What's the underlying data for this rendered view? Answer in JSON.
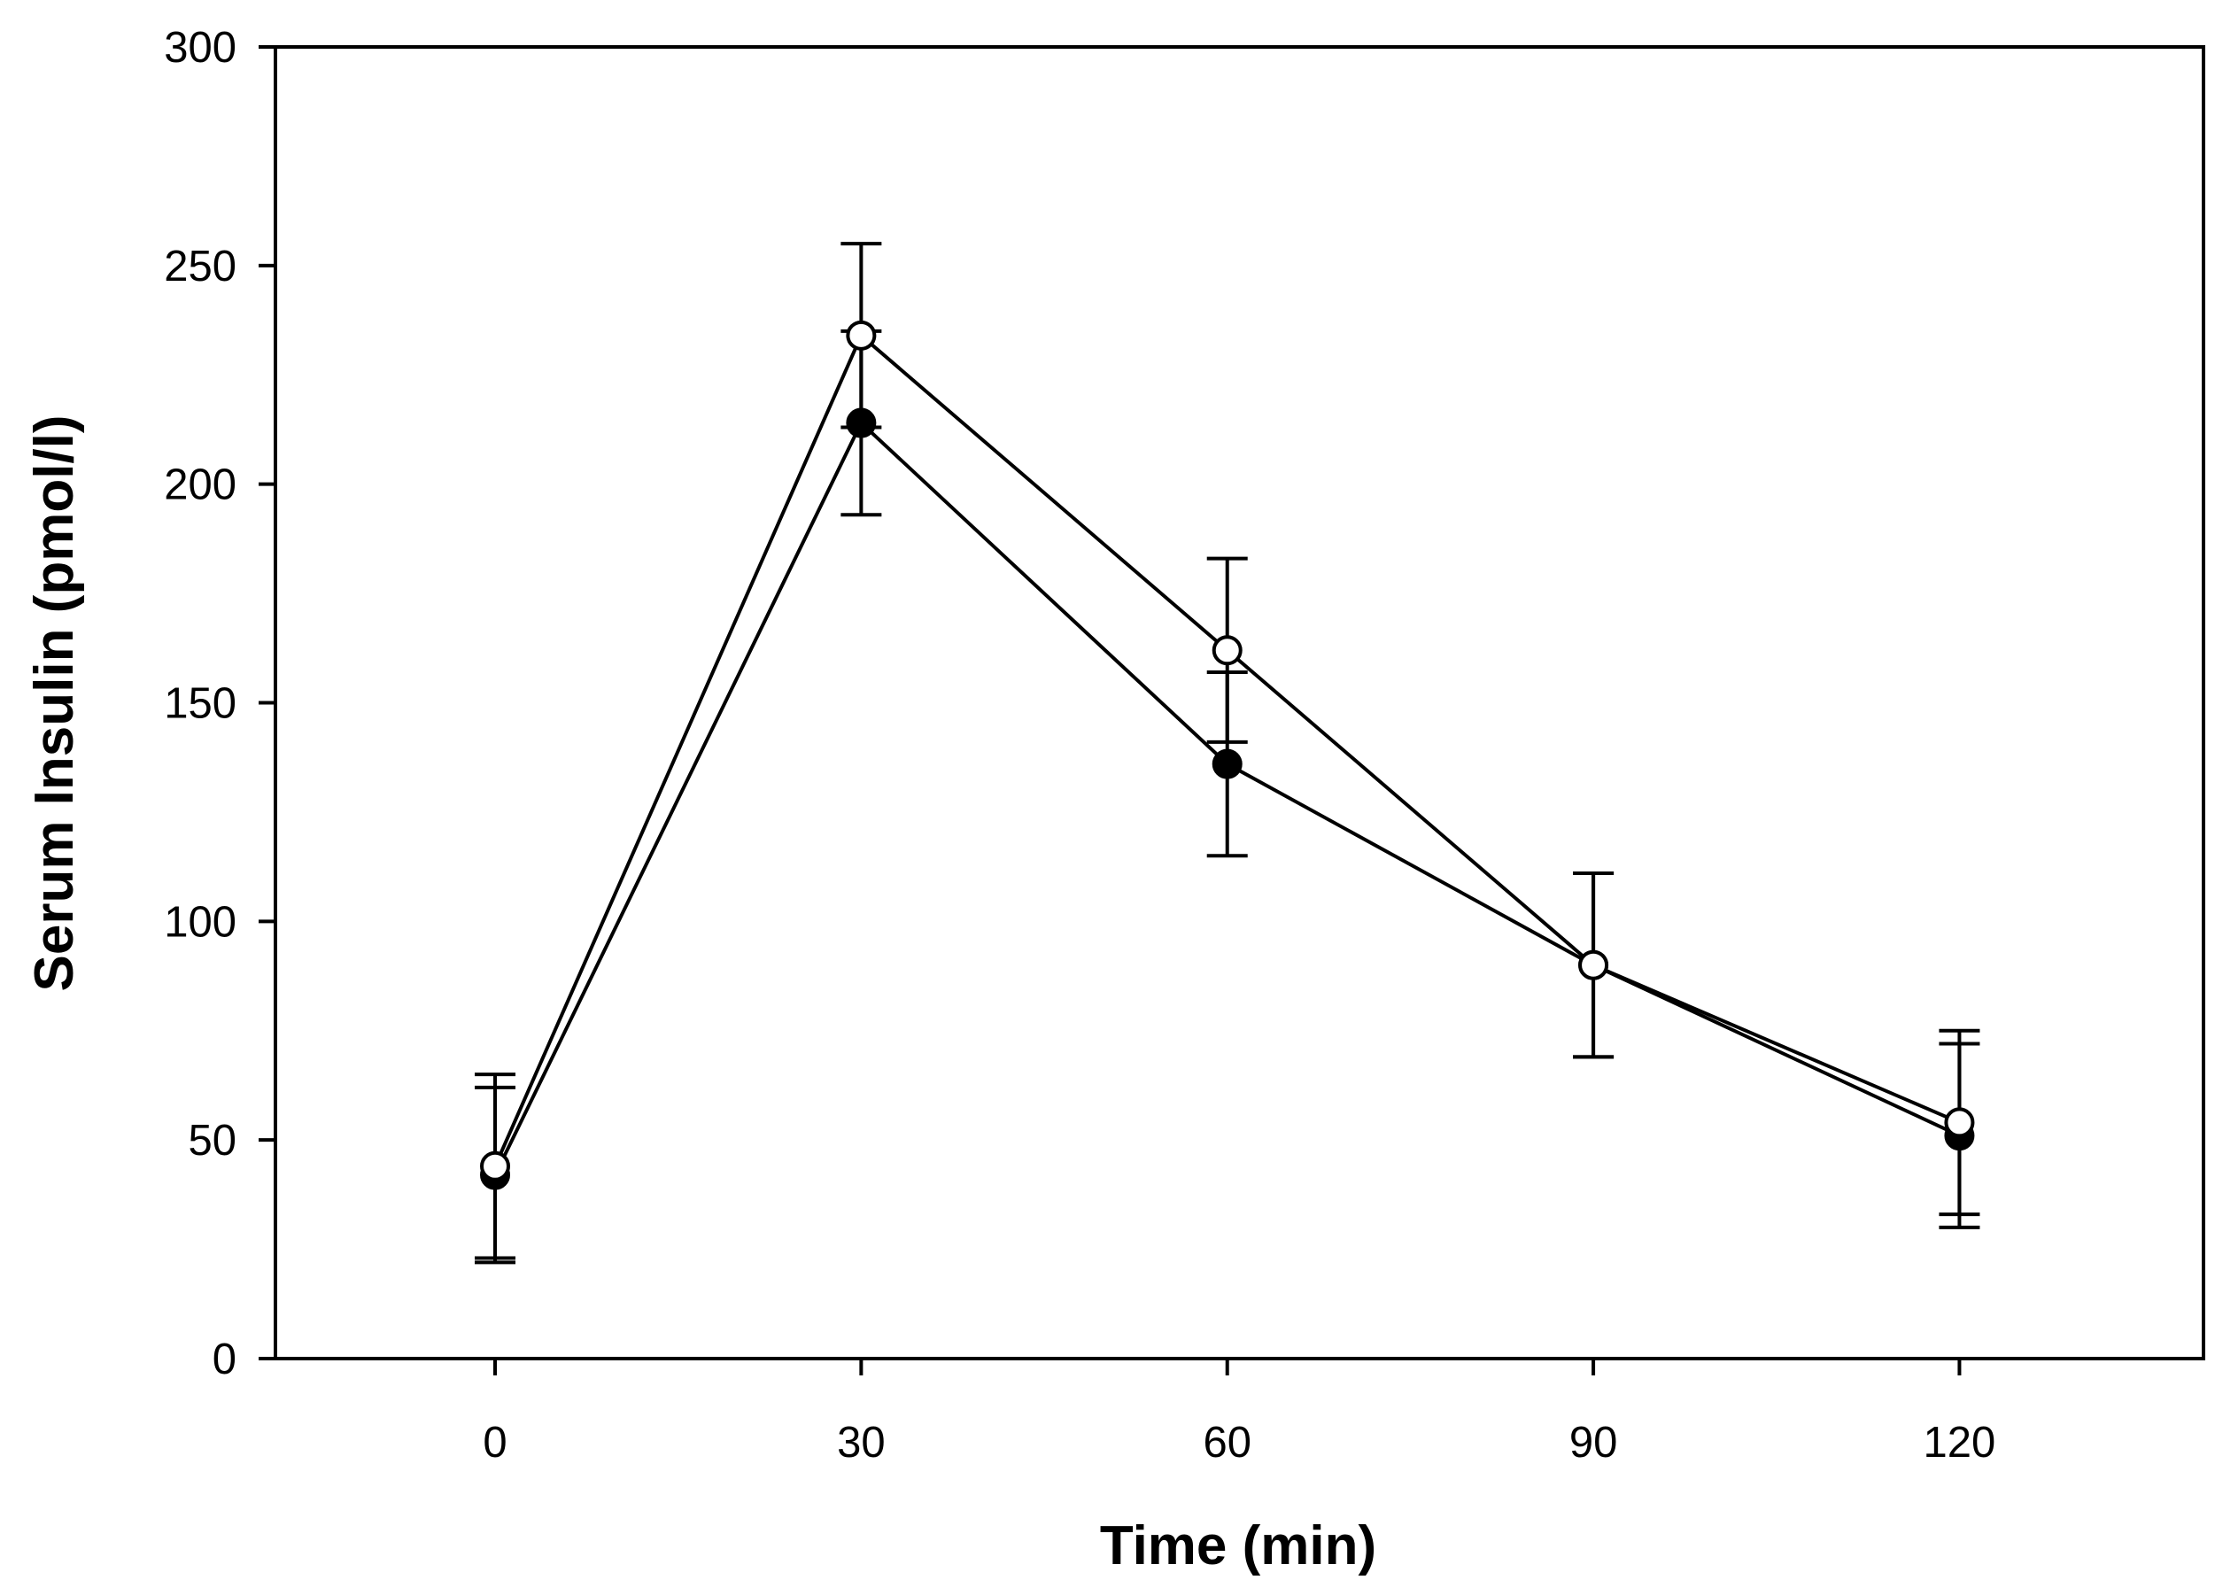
{
  "chart_data": {
    "type": "line",
    "title": "",
    "xlabel": "Time (min)",
    "ylabel": "Serum Insulin (pmol/l)",
    "xlim": [
      -18,
      140
    ],
    "ylim": [
      0,
      300
    ],
    "xticks": [
      0,
      30,
      60,
      90,
      120
    ],
    "yticks": [
      0,
      50,
      100,
      150,
      200,
      250,
      300
    ],
    "grid": false,
    "legend": "none",
    "series": [
      {
        "name": "filled-circle-series",
        "marker": "filled-circle",
        "color": "#000000",
        "x": [
          0,
          30,
          60,
          90,
          120
        ],
        "y": [
          42,
          214,
          136,
          90,
          51
        ],
        "error": [
          20,
          21,
          21,
          21,
          21
        ]
      },
      {
        "name": "open-circle-series",
        "marker": "open-circle",
        "color": "#000000",
        "x": [
          0,
          30,
          60,
          90,
          120
        ],
        "y": [
          44,
          234,
          162,
          90,
          54
        ],
        "error": [
          21,
          21,
          21,
          21,
          21
        ]
      }
    ]
  }
}
